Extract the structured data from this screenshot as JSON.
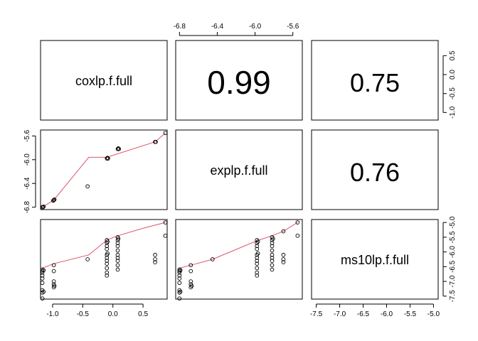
{
  "chart_data": {
    "type": "scatter",
    "title": "",
    "variables": [
      "coxlp.f.full",
      "explp.f.full",
      "ms10lp.f.full"
    ],
    "correlations": [
      {
        "row": 0,
        "col": 1,
        "label": "0.99",
        "size": "large"
      },
      {
        "row": 0,
        "col": 2,
        "label": "0.75",
        "size": "medium"
      },
      {
        "row": 1,
        "col": 2,
        "label": "0.76",
        "size": "medium"
      }
    ],
    "axes": {
      "cox": {
        "range": [
          -1.2,
          0.9
        ],
        "ticks": [
          -1.0,
          -0.5,
          0.0,
          0.5
        ],
        "tick_labels": [
          "-1.0",
          "-0.5",
          "0.0",
          "0.5"
        ]
      },
      "exp": {
        "range": [
          -6.84,
          -5.5
        ],
        "ticks": [
          -6.8,
          -6.4,
          -6.0,
          -5.6
        ],
        "tick_labels": [
          "-6.8",
          "-6.4",
          "-6.0",
          "-5.6"
        ]
      },
      "ms10": {
        "range": [
          -7.6,
          -4.9
        ],
        "ticks": [
          -7.5,
          -7.0,
          -6.5,
          -6.0,
          -5.5,
          -5.0
        ],
        "tick_labels": [
          "-7.5",
          "-7.0",
          "-6.5",
          "-6.0",
          "-5.5",
          "-5.0"
        ]
      }
    },
    "panels": [
      {
        "name": "explp-vs-coxlp",
        "row": 1,
        "col": 0,
        "xvar": "cox",
        "yvar": "exp",
        "points": [
          [
            -1.17,
            -6.8
          ],
          [
            -1.16,
            -6.8
          ],
          [
            -1.15,
            -6.79
          ],
          [
            -0.98,
            -6.68
          ],
          [
            -0.99,
            -6.69
          ],
          [
            -0.97,
            -6.67
          ],
          [
            -0.42,
            -6.45
          ],
          [
            -0.1,
            -5.98
          ],
          [
            -0.09,
            -5.97
          ],
          [
            -0.08,
            -5.98
          ],
          [
            0.08,
            -5.82
          ],
          [
            0.09,
            -5.81
          ],
          [
            0.1,
            -5.82
          ],
          [
            0.7,
            -5.7
          ],
          [
            0.71,
            -5.7
          ],
          [
            0.87,
            -5.55
          ]
        ],
        "smooth": [
          [
            -1.17,
            -6.8
          ],
          [
            -0.98,
            -6.68
          ],
          [
            -0.4,
            -5.96
          ],
          [
            -0.1,
            -5.96
          ],
          [
            0.7,
            -5.7
          ],
          [
            0.87,
            -5.55
          ]
        ]
      },
      {
        "name": "ms10lp-vs-coxlp",
        "row": 2,
        "col": 0,
        "xvar": "cox",
        "yvar": "ms10",
        "points": [
          [
            -1.17,
            -6.6
          ],
          [
            -1.17,
            -6.65
          ],
          [
            -1.17,
            -6.7
          ],
          [
            -1.17,
            -6.8
          ],
          [
            -1.17,
            -6.9
          ],
          [
            -1.17,
            -7.05
          ],
          [
            -1.17,
            -7.3
          ],
          [
            -1.17,
            -7.38
          ],
          [
            -1.17,
            -7.58
          ],
          [
            -1.15,
            -6.62
          ],
          [
            -1.15,
            -7.35
          ],
          [
            -0.98,
            -6.45
          ],
          [
            -0.98,
            -6.65
          ],
          [
            -0.98,
            -7.0
          ],
          [
            -0.98,
            -7.1
          ],
          [
            -0.98,
            -7.2
          ],
          [
            -0.97,
            -7.15
          ],
          [
            -0.42,
            -6.25
          ],
          [
            -0.1,
            -5.6
          ],
          [
            -0.1,
            -5.7
          ],
          [
            -0.1,
            -5.8
          ],
          [
            -0.1,
            -5.9
          ],
          [
            -0.1,
            -6.1
          ],
          [
            -0.1,
            -6.2
          ],
          [
            -0.1,
            -6.3
          ],
          [
            -0.1,
            -6.4
          ],
          [
            -0.1,
            -6.55
          ],
          [
            -0.1,
            -6.7
          ],
          [
            -0.1,
            -6.8
          ],
          [
            -0.09,
            -5.65
          ],
          [
            -0.09,
            -6.05
          ],
          [
            0.08,
            -5.5
          ],
          [
            0.08,
            -5.6
          ],
          [
            0.08,
            -5.7
          ],
          [
            0.08,
            -5.8
          ],
          [
            0.08,
            -5.95
          ],
          [
            0.08,
            -6.1
          ],
          [
            0.08,
            -6.2
          ],
          [
            0.08,
            -6.3
          ],
          [
            0.08,
            -6.45
          ],
          [
            0.08,
            -6.6
          ],
          [
            0.09,
            -5.55
          ],
          [
            0.7,
            -6.1
          ],
          [
            0.7,
            -6.25
          ],
          [
            0.7,
            -6.35
          ],
          [
            0.87,
            -5.0
          ],
          [
            0.87,
            -5.45
          ]
        ],
        "smooth": [
          [
            -1.17,
            -6.55
          ],
          [
            -0.98,
            -6.4
          ],
          [
            -0.4,
            -6.1
          ],
          [
            -0.1,
            -5.6
          ],
          [
            0.08,
            -5.45
          ],
          [
            0.5,
            -5.2
          ],
          [
            0.87,
            -5.0
          ]
        ]
      },
      {
        "name": "ms10lp-vs-explp",
        "row": 2,
        "col": 1,
        "xvar": "exp",
        "yvar": "ms10",
        "points": [
          [
            -6.8,
            -6.6
          ],
          [
            -6.8,
            -6.65
          ],
          [
            -6.8,
            -6.7
          ],
          [
            -6.8,
            -6.8
          ],
          [
            -6.8,
            -6.9
          ],
          [
            -6.8,
            -7.05
          ],
          [
            -6.8,
            -7.3
          ],
          [
            -6.8,
            -7.38
          ],
          [
            -6.8,
            -7.58
          ],
          [
            -6.79,
            -6.62
          ],
          [
            -6.79,
            -7.35
          ],
          [
            -6.68,
            -6.45
          ],
          [
            -6.68,
            -6.65
          ],
          [
            -6.68,
            -7.0
          ],
          [
            -6.68,
            -7.1
          ],
          [
            -6.68,
            -7.2
          ],
          [
            -6.67,
            -7.15
          ],
          [
            -6.45,
            -6.25
          ],
          [
            -5.98,
            -5.6
          ],
          [
            -5.98,
            -5.7
          ],
          [
            -5.98,
            -5.8
          ],
          [
            -5.98,
            -5.9
          ],
          [
            -5.98,
            -6.1
          ],
          [
            -5.98,
            -6.2
          ],
          [
            -5.98,
            -6.3
          ],
          [
            -5.98,
            -6.4
          ],
          [
            -5.98,
            -6.55
          ],
          [
            -5.98,
            -6.7
          ],
          [
            -5.98,
            -6.8
          ],
          [
            -5.97,
            -5.65
          ],
          [
            -5.97,
            -6.05
          ],
          [
            -5.82,
            -5.5
          ],
          [
            -5.82,
            -5.6
          ],
          [
            -5.82,
            -5.7
          ],
          [
            -5.82,
            -5.8
          ],
          [
            -5.82,
            -5.95
          ],
          [
            -5.82,
            -6.1
          ],
          [
            -5.82,
            -6.2
          ],
          [
            -5.82,
            -6.3
          ],
          [
            -5.82,
            -6.45
          ],
          [
            -5.82,
            -6.6
          ],
          [
            -5.81,
            -5.55
          ],
          [
            -5.7,
            -6.1
          ],
          [
            -5.7,
            -6.25
          ],
          [
            -5.7,
            -6.35
          ],
          [
            -5.7,
            -5.3
          ],
          [
            -5.55,
            -5.0
          ],
          [
            -5.55,
            -5.45
          ]
        ],
        "smooth": [
          [
            -6.8,
            -6.55
          ],
          [
            -6.68,
            -6.45
          ],
          [
            -6.45,
            -6.25
          ],
          [
            -5.98,
            -5.62
          ],
          [
            -5.82,
            -5.45
          ],
          [
            -5.7,
            -5.3
          ],
          [
            -5.55,
            -5.0
          ]
        ]
      }
    ]
  }
}
